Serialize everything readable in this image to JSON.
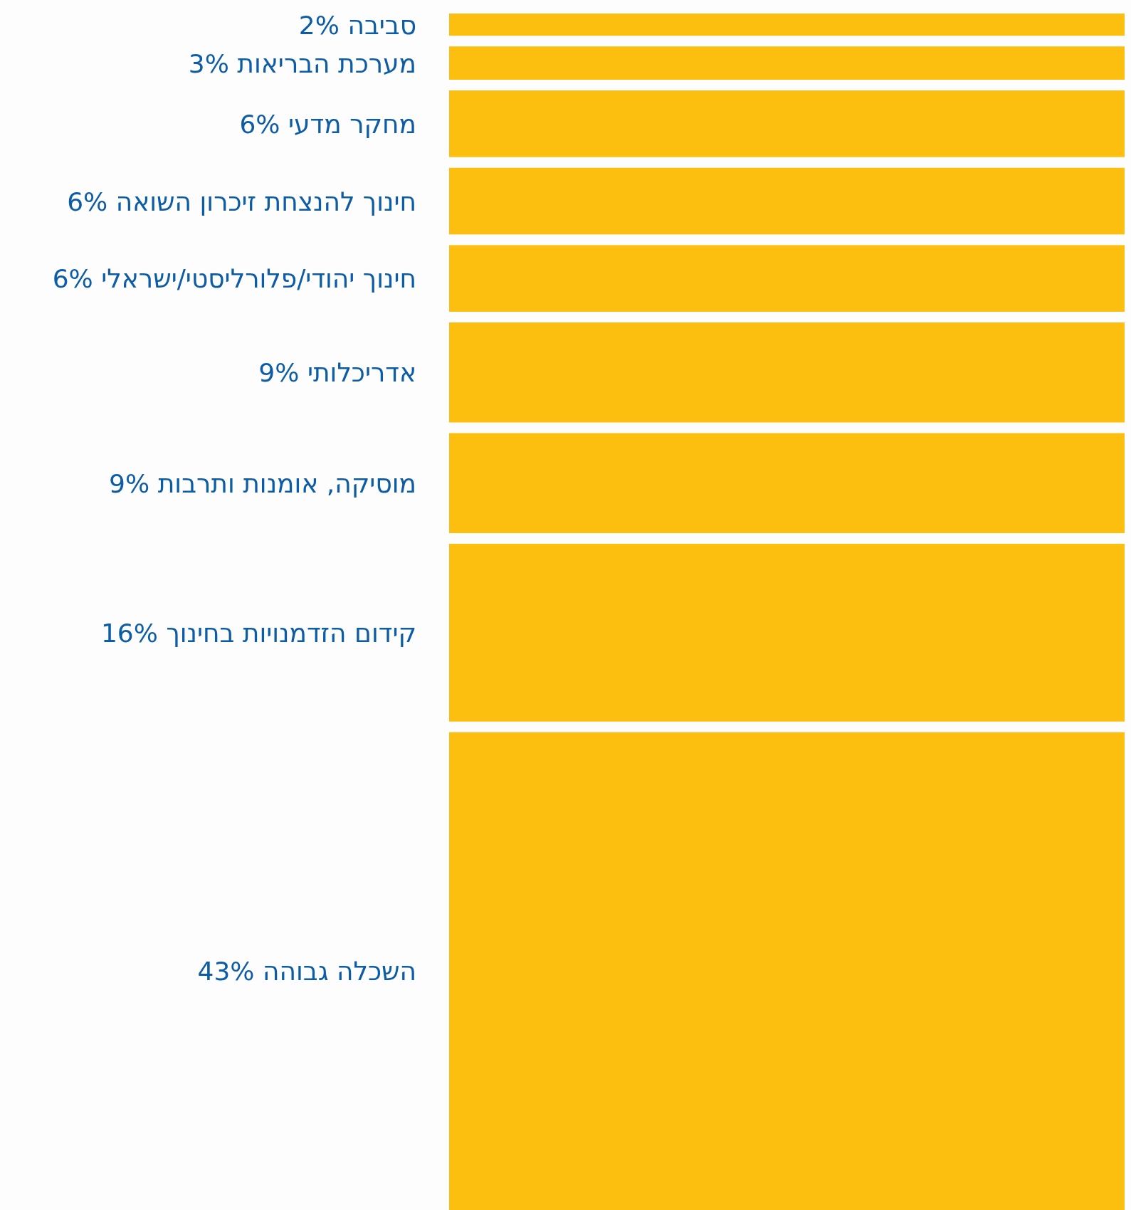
{
  "chart_data": {
    "type": "other",
    "color": "#fcbf10",
    "categories": [
      "סביבה",
      "מערכת הבריאות",
      "מחקר מדעי",
      "חינוך להנצחת זיכרון השואה",
      "חינוך יהודי/פלורליסטי/ישראלי",
      "אדריכלותי",
      "מוסיקה, אומנות ותרבות",
      "קידום הזדמנויות בחינוך",
      "השכלה גבוהה"
    ],
    "values": [
      2,
      3,
      6,
      6,
      6,
      9,
      9,
      16,
      43
    ],
    "value_labels": [
      "2%",
      "3%",
      "6%",
      "6%",
      "6%",
      "9%",
      "9%",
      "16%",
      "43%"
    ]
  }
}
